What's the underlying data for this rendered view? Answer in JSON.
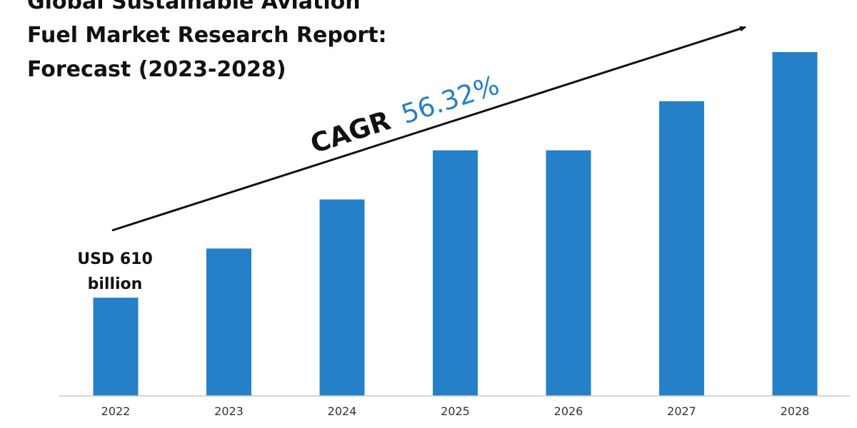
{
  "chart_data": {
    "type": "bar",
    "title": [
      "Global Sustainable Aviation",
      "Fuel Market Research Report:",
      "Forecast (2023-2028)"
    ],
    "categories": [
      "2022",
      "2023",
      "2024",
      "2025",
      "2026",
      "2027",
      "2028"
    ],
    "values": [
      2,
      3,
      4,
      5,
      5,
      6,
      7
    ],
    "ylim": [
      0,
      7
    ],
    "xlabel": "",
    "ylabel": "",
    "value_note": "relative bar heights; only the first bar is labeled",
    "bar_color": "#2680c8",
    "callout": {
      "line1": "USD 610",
      "line2": "billion",
      "category": "2022"
    },
    "cagr": {
      "label": "CAGR",
      "value": "56.32%",
      "label_color": "#111111",
      "value_color": "#2680c8"
    }
  }
}
